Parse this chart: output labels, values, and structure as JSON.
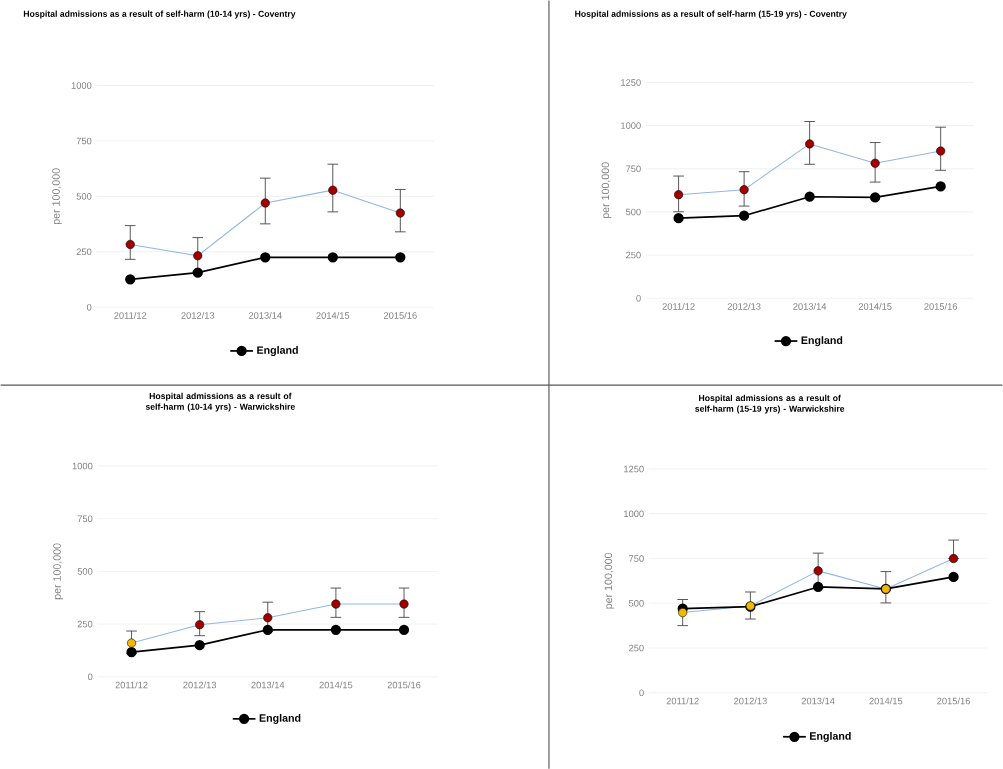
{
  "chart_data": [
    {
      "type": "line",
      "title": "Hospital admissions as a result of self-harm (10-14 yrs) - Coventry",
      "ylabel": "per 100,000",
      "categories": [
        "2011/12",
        "2012/13",
        "2013/14",
        "2014/15",
        "2015/16"
      ],
      "ylim": [
        0,
        1000
      ],
      "yticks": [
        0,
        250,
        500,
        750,
        1000
      ],
      "grid": "y",
      "legend": "bottom",
      "marker": "circle",
      "series": [
        {
          "color": "#8fb8e8",
          "colors": [
            "#a00000",
            "#a00000",
            "#a00000",
            "#a00000",
            "#a00000"
          ],
          "values": [
            283,
            232,
            470,
            528,
            425
          ],
          "errors": [
            [
              216,
              368
            ],
            [
              160,
              314
            ],
            [
              376,
              582
            ],
            [
              430,
              645
            ],
            [
              340,
              531
            ]
          ]
        },
        {
          "name": "England",
          "color": "#000000",
          "values": [
            126,
            156,
            225,
            225,
            225
          ]
        }
      ]
    },
    {
      "type": "line",
      "title": "Hospital admissions as a result of self-harm (15-19 yrs) - Coventry",
      "ylabel": "per 100,000",
      "categories": [
        "2011/12",
        "2012/13",
        "2013/14",
        "2014/15",
        "2015/16"
      ],
      "ylim": [
        0,
        1250
      ],
      "yticks": [
        0,
        250,
        500,
        750,
        1000,
        1250
      ],
      "grid": "y",
      "legend": "bottom",
      "marker": "circle",
      "series": [
        {
          "color": "#8fb8e8",
          "colors": [
            "#a00000",
            "#a00000",
            "#a00000",
            "#a00000",
            "#a00000"
          ],
          "values": [
            600,
            629,
            894,
            782,
            853
          ],
          "errors": [
            [
              501,
              708
            ],
            [
              534,
              733
            ],
            [
              776,
              1024
            ],
            [
              673,
              902
            ],
            [
              741,
              991
            ]
          ]
        },
        {
          "name": "England",
          "color": "#000000",
          "values": [
            464,
            478,
            588,
            584,
            648
          ]
        }
      ]
    },
    {
      "type": "line",
      "title": "Hospital admissions as a result of self-harm (10-14 yrs) - Warwickshire",
      "ylabel": "per 100,000",
      "categories": [
        "2011/12",
        "2012/13",
        "2013/14",
        "2014/15",
        "2015/16"
      ],
      "ylim": [
        0,
        1000
      ],
      "yticks": [
        0,
        250,
        500,
        750,
        1000
      ],
      "grid": "y",
      "legend": "bottom",
      "marker": "circle",
      "series": [
        {
          "color": "#8fb8e8",
          "colors": [
            "#f0b800",
            "#a00000",
            "#a00000",
            "#a00000",
            "#a00000"
          ],
          "values": [
            160,
            247,
            280,
            345,
            345
          ],
          "errors": [
            [
              110,
              217
            ],
            [
              195,
              309
            ],
            [
              215,
              354
            ],
            [
              282,
              421
            ],
            [
              282,
              421
            ]
          ]
        },
        {
          "name": "England",
          "color": "#000000",
          "values": [
            117,
            150,
            223,
            223,
            223
          ]
        }
      ]
    },
    {
      "type": "line",
      "title": "Hospital admissions as a result of self-harm (15-19 yrs) - Warwickshire",
      "ylabel": "per 100,000",
      "categories": [
        "2011/12",
        "2012/13",
        "2013/14",
        "2014/15",
        "2015/16"
      ],
      "ylim": [
        0,
        1250
      ],
      "yticks": [
        0,
        250,
        500,
        750,
        1000,
        1250
      ],
      "grid": "y",
      "legend": "bottom",
      "marker": "circle",
      "series": [
        {
          "color": "#8fb8e8",
          "colors": [
            "#f0b800",
            "#f0b800",
            "#a00000",
            "#f0b800",
            "#a00000"
          ],
          "values": [
            448,
            485,
            681,
            580,
            750
          ],
          "errors": [
            [
              375,
              521
            ],
            [
              412,
              563
            ],
            [
              585,
              780
            ],
            [
              502,
              677
            ],
            [
              750,
              853
            ]
          ]
        },
        {
          "name": "England",
          "color": "#000000",
          "values": [
            470,
            481,
            591,
            580,
            647
          ]
        }
      ]
    }
  ]
}
